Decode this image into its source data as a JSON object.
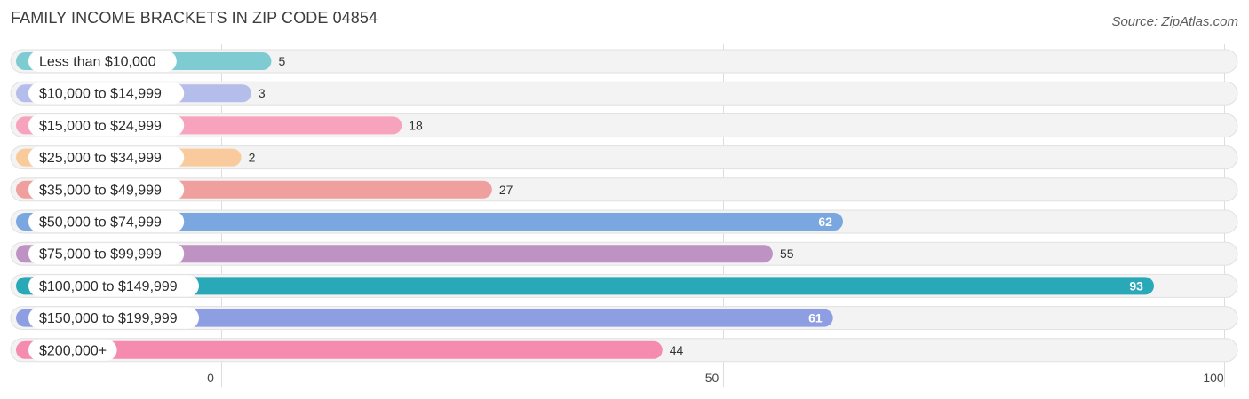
{
  "chart_data": {
    "type": "bar",
    "orientation": "horizontal",
    "title": "FAMILY INCOME BRACKETS IN ZIP CODE 04854",
    "source": "Source: ZipAtlas.com",
    "categories": [
      "Less than $10,000",
      "$10,000 to $14,999",
      "$15,000 to $24,999",
      "$25,000 to $34,999",
      "$35,000 to $49,999",
      "$50,000 to $74,999",
      "$75,000 to $99,999",
      "$100,000 to $149,999",
      "$150,000 to $199,999",
      "$200,000+"
    ],
    "values": [
      5,
      3,
      18,
      2,
      27,
      62,
      55,
      93,
      61,
      44
    ],
    "value_labels": [
      "5",
      "3",
      "18",
      "2",
      "27",
      "62",
      "55",
      "93",
      "61",
      "44"
    ],
    "colors": [
      "#7ecbd1",
      "#b5bdeb",
      "#f7a3bd",
      "#f9cb9c",
      "#efa09e",
      "#7aa7e0",
      "#bf92c4",
      "#29a8b8",
      "#8e9ee2",
      "#f58caf"
    ],
    "xlim": [
      0,
      100
    ],
    "xticks": [
      0,
      50,
      100
    ],
    "xtick_labels": [
      "0",
      "50",
      "100"
    ],
    "grid": true
  }
}
